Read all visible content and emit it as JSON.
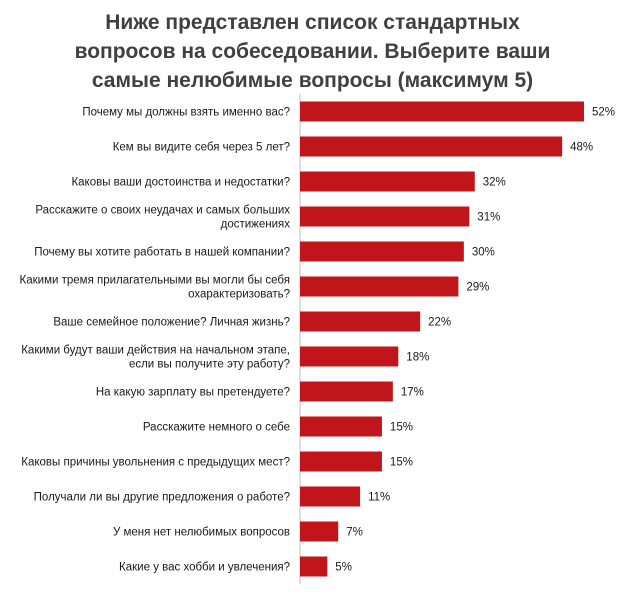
{
  "chart_data": {
    "type": "bar",
    "orientation": "horizontal",
    "title": "Ниже представлен список стандартных вопросов на собеседовании. Выберите ваши самые нелюбимые вопросы (максимум 5)",
    "title_lines": [
      "Ниже представлен список стандартных",
      "вопросов на собеседовании. Выберите ваши",
      "самые нелюбимые вопросы (максимум 5)"
    ],
    "categories": [
      [
        "Почему мы должны взять именно вас?"
      ],
      [
        "Кем вы видите себя через  5 лет?"
      ],
      [
        "Каковы ваши достоинства и недостатки?"
      ],
      [
        "Расскажите о своих неудачах и самых больших",
        "достижениях"
      ],
      [
        "Почему вы хотите работать в нашей компании?"
      ],
      [
        "Какими тремя прилагательными вы могли бы себя",
        "охарактеризовать?"
      ],
      [
        "Ваше семейное положение? Личная жизнь?"
      ],
      [
        "Какими будут ваши действия  на начальном этапе,",
        "если вы получите эту работу?"
      ],
      [
        "На какую зарплату вы претендуете?"
      ],
      [
        "Расскажите немного о себе"
      ],
      [
        "Каковы причины увольнения  с предыдущих  мест?"
      ],
      [
        "Получали ли вы другие предложения  о работе?"
      ],
      [
        "У меня нет нелюбимых вопросов"
      ],
      [
        "Какие у вас хобби и увлечения?"
      ]
    ],
    "values": [
      52,
      48,
      32,
      31,
      30,
      29,
      22,
      18,
      17,
      15,
      15,
      11,
      7,
      5
    ],
    "value_labels": [
      "52%",
      "48%",
      "32%",
      "31%",
      "30%",
      "29%",
      "22%",
      "18%",
      "17%",
      "15%",
      "15%",
      "11%",
      "7%",
      "5%"
    ],
    "xlim": [
      0,
      52
    ],
    "bar_color": "#c0161b",
    "grid": false,
    "legend": "none"
  }
}
